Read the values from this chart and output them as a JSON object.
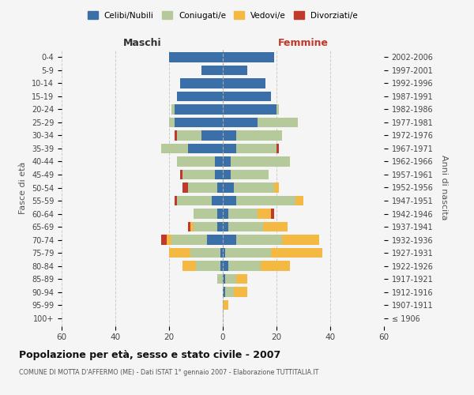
{
  "age_groups": [
    "100+",
    "95-99",
    "90-94",
    "85-89",
    "80-84",
    "75-79",
    "70-74",
    "65-69",
    "60-64",
    "55-59",
    "50-54",
    "45-49",
    "40-44",
    "35-39",
    "30-34",
    "25-29",
    "20-24",
    "15-19",
    "10-14",
    "5-9",
    "0-4"
  ],
  "birth_years": [
    "≤ 1906",
    "1907-1911",
    "1912-1916",
    "1917-1921",
    "1922-1926",
    "1927-1931",
    "1932-1936",
    "1937-1941",
    "1942-1946",
    "1947-1951",
    "1952-1956",
    "1957-1961",
    "1962-1966",
    "1967-1971",
    "1972-1976",
    "1977-1981",
    "1982-1986",
    "1987-1991",
    "1992-1996",
    "1997-2001",
    "2002-2006"
  ],
  "maschi_celibi": [
    0,
    0,
    0,
    0,
    1,
    1,
    6,
    2,
    2,
    4,
    2,
    3,
    3,
    13,
    8,
    18,
    18,
    17,
    16,
    8,
    20
  ],
  "maschi_coniugati": [
    0,
    0,
    0,
    2,
    9,
    11,
    13,
    9,
    9,
    13,
    11,
    12,
    14,
    10,
    9,
    2,
    1,
    0,
    0,
    0,
    0
  ],
  "maschi_vedovi": [
    0,
    0,
    0,
    0,
    5,
    8,
    2,
    1,
    0,
    0,
    0,
    0,
    0,
    0,
    0,
    0,
    0,
    0,
    0,
    0,
    0
  ],
  "maschi_divorziati": [
    0,
    0,
    0,
    0,
    0,
    0,
    2,
    1,
    0,
    1,
    2,
    1,
    0,
    0,
    1,
    0,
    0,
    0,
    0,
    0,
    0
  ],
  "femmine_celibi": [
    0,
    0,
    1,
    1,
    2,
    1,
    5,
    2,
    2,
    5,
    4,
    3,
    3,
    5,
    5,
    13,
    20,
    18,
    16,
    9,
    19
  ],
  "femmine_coniugati": [
    0,
    0,
    3,
    4,
    12,
    17,
    17,
    13,
    11,
    22,
    15,
    14,
    22,
    15,
    17,
    15,
    1,
    0,
    0,
    0,
    0
  ],
  "femmine_vedovi": [
    0,
    2,
    5,
    4,
    11,
    19,
    14,
    9,
    5,
    3,
    2,
    0,
    0,
    0,
    0,
    0,
    0,
    0,
    0,
    0,
    0
  ],
  "femmine_divorziati": [
    0,
    0,
    0,
    0,
    0,
    0,
    0,
    0,
    1,
    0,
    0,
    0,
    0,
    1,
    0,
    0,
    0,
    0,
    0,
    0,
    0
  ],
  "colors": {
    "celibi": "#3a6fa8",
    "coniugati": "#b5c99a",
    "vedovi": "#f4b942",
    "divorziati": "#c0392b"
  },
  "title": "Popolazione per età, sesso e stato civile - 2007",
  "subtitle": "COMUNE DI MOTTA D'AFFERMO (ME) - Dati ISTAT 1° gennaio 2007 - Elaborazione TUTTITALIA.IT",
  "xlabel_left": "Maschi",
  "xlabel_right": "Femmine",
  "ylabel_left": "Fasce di età",
  "ylabel_right": "Anni di nascita",
  "xlim": 60,
  "bg_color": "#f5f5f5",
  "grid_color": "#cccccc"
}
